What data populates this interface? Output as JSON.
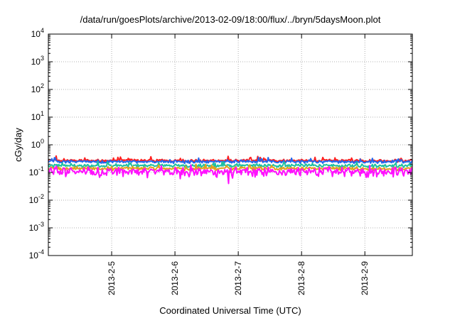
{
  "chart_data": {
    "type": "line",
    "title": "/data/run/goesPlots/archive/2013-02-09/18:00/flux/../bryn/5daysMoon.plot",
    "xlabel": "Coordinated Universal Time (UTC)",
    "ylabel": "cGy/day",
    "yscale": "log",
    "ylim": [
      0.0001,
      10000
    ],
    "y_ticks": [
      {
        "base": "10",
        "exp": "-4",
        "value": 0.0001
      },
      {
        "base": "10",
        "exp": "-3",
        "value": 0.001
      },
      {
        "base": "10",
        "exp": "-2",
        "value": 0.01
      },
      {
        "base": "10",
        "exp": "-1",
        "value": 0.1
      },
      {
        "base": "10",
        "exp": "0",
        "value": 1
      },
      {
        "base": "10",
        "exp": "1",
        "value": 10
      },
      {
        "base": "10",
        "exp": "2",
        "value": 100
      },
      {
        "base": "10",
        "exp": "3",
        "value": 1000
      },
      {
        "base": "10",
        "exp": "4",
        "value": 10000
      }
    ],
    "xlim": [
      "2013-02-04 00:00",
      "2013-02-09 18:00"
    ],
    "x_ticks": [
      {
        "label": "2013-2-5",
        "value": "2013-02-05 00:00"
      },
      {
        "label": "2013-2-6",
        "value": "2013-02-06 00:00"
      },
      {
        "label": "2013-2-7",
        "value": "2013-02-07 00:00"
      },
      {
        "label": "2013-2-8",
        "value": "2013-02-08 00:00"
      },
      {
        "label": "2013-2-9",
        "value": "2013-02-09 00:00"
      }
    ],
    "grid": true,
    "series": [
      {
        "color": "#ff2020",
        "level": 0.27,
        "noise": 0.045,
        "dips": []
      },
      {
        "color": "#2266ee",
        "level": 0.245,
        "noise": 0.045,
        "dips": []
      },
      {
        "color": "#20c0a0",
        "level": 0.175,
        "noise": 0.035,
        "dips": []
      },
      {
        "color": "#e0a020",
        "level": 0.14,
        "noise": 0.03,
        "dips": []
      },
      {
        "color": "#ff10ff",
        "level": 0.108,
        "noise": 0.06,
        "dips": [
          {
            "x": "2013-02-06 20:20",
            "y": 0.04
          },
          {
            "x": "2013-02-06 02:00",
            "y": 0.06
          }
        ]
      }
    ]
  }
}
